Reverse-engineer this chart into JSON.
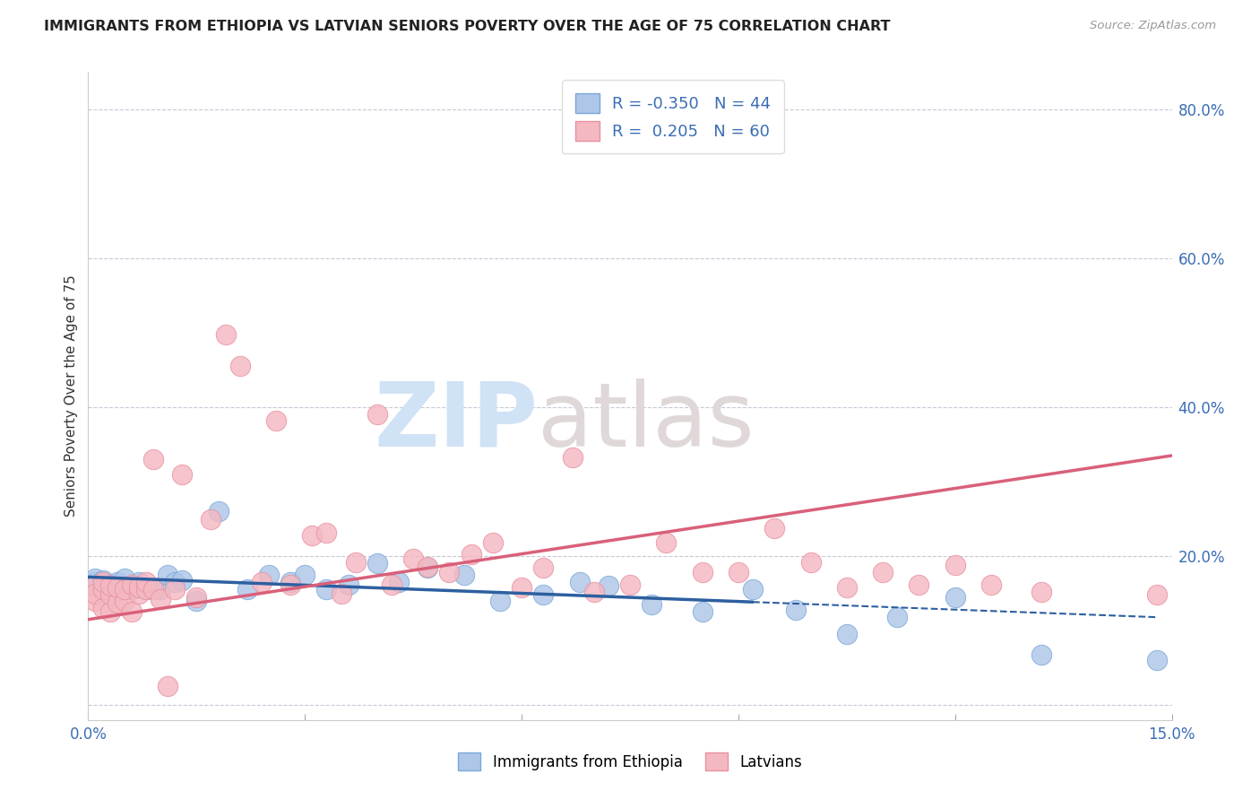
{
  "title": "IMMIGRANTS FROM ETHIOPIA VS LATVIAN SENIORS POVERTY OVER THE AGE OF 75 CORRELATION CHART",
  "source": "Source: ZipAtlas.com",
  "ylabel": "Seniors Poverty Over the Age of 75",
  "xlim": [
    0.0,
    0.15
  ],
  "ylim": [
    -0.02,
    0.85
  ],
  "xticks": [
    0.0,
    0.03,
    0.06,
    0.09,
    0.12,
    0.15
  ],
  "xticklabels": [
    "0.0%",
    "",
    "",
    "",
    "",
    "15.0%"
  ],
  "yticks_right": [
    0.0,
    0.2,
    0.4,
    0.6,
    0.8
  ],
  "ytick_labels_right": [
    "",
    "20.0%",
    "40.0%",
    "60.0%",
    "80.0%"
  ],
  "legend_blue_r": "-0.350",
  "legend_blue_n": "44",
  "legend_pink_r": "0.205",
  "legend_pink_n": "60",
  "blue_color": "#aec6e8",
  "pink_color": "#f4b8c1",
  "blue_line_color": "#2d5fa0",
  "pink_line_color": "#d9607a",
  "blue_edge_color": "#7aa8d8",
  "pink_edge_color": "#e8909f",
  "blue_scatter_x": [
    0.001,
    0.001,
    0.001,
    0.002,
    0.002,
    0.003,
    0.003,
    0.004,
    0.004,
    0.005,
    0.005,
    0.006,
    0.007,
    0.008,
    0.009,
    0.01,
    0.011,
    0.012,
    0.013,
    0.015,
    0.018,
    0.022,
    0.025,
    0.028,
    0.03,
    0.033,
    0.036,
    0.04,
    0.043,
    0.047,
    0.052,
    0.057,
    0.063,
    0.068,
    0.072,
    0.078,
    0.085,
    0.092,
    0.098,
    0.105,
    0.112,
    0.12,
    0.132,
    0.148
  ],
  "blue_scatter_y": [
    0.165,
    0.17,
    0.16,
    0.158,
    0.168,
    0.155,
    0.162,
    0.15,
    0.165,
    0.158,
    0.17,
    0.155,
    0.165,
    0.155,
    0.158,
    0.155,
    0.175,
    0.165,
    0.168,
    0.14,
    0.26,
    0.155,
    0.175,
    0.165,
    0.175,
    0.155,
    0.162,
    0.19,
    0.165,
    0.185,
    0.175,
    0.14,
    0.148,
    0.165,
    0.16,
    0.135,
    0.125,
    0.155,
    0.128,
    0.095,
    0.118,
    0.145,
    0.068,
    0.06
  ],
  "pink_scatter_x": [
    0.001,
    0.001,
    0.001,
    0.002,
    0.002,
    0.002,
    0.003,
    0.003,
    0.003,
    0.004,
    0.004,
    0.005,
    0.005,
    0.006,
    0.006,
    0.007,
    0.007,
    0.008,
    0.008,
    0.009,
    0.009,
    0.01,
    0.011,
    0.012,
    0.013,
    0.015,
    0.017,
    0.019,
    0.021,
    0.024,
    0.026,
    0.028,
    0.031,
    0.033,
    0.035,
    0.037,
    0.04,
    0.042,
    0.045,
    0.047,
    0.05,
    0.053,
    0.056,
    0.06,
    0.063,
    0.067,
    0.07,
    0.075,
    0.08,
    0.085,
    0.09,
    0.095,
    0.1,
    0.105,
    0.11,
    0.115,
    0.12,
    0.125,
    0.132,
    0.148
  ],
  "pink_scatter_y": [
    0.14,
    0.16,
    0.15,
    0.13,
    0.155,
    0.165,
    0.125,
    0.148,
    0.16,
    0.138,
    0.158,
    0.14,
    0.155,
    0.125,
    0.162,
    0.15,
    0.158,
    0.155,
    0.165,
    0.155,
    0.33,
    0.142,
    0.025,
    0.155,
    0.31,
    0.145,
    0.25,
    0.498,
    0.455,
    0.165,
    0.382,
    0.162,
    0.228,
    0.232,
    0.15,
    0.192,
    0.39,
    0.162,
    0.196,
    0.186,
    0.178,
    0.202,
    0.218,
    0.158,
    0.185,
    0.332,
    0.152,
    0.162,
    0.218,
    0.178,
    0.178,
    0.238,
    0.192,
    0.158,
    0.178,
    0.162,
    0.188,
    0.162,
    0.152,
    0.148
  ],
  "blue_trend_x0": 0.0,
  "blue_trend_y0": 0.172,
  "blue_trend_x1": 0.148,
  "blue_trend_y1": 0.118,
  "blue_trend_solid_end": 0.092,
  "pink_trend_x0": 0.0,
  "pink_trend_y0": 0.115,
  "pink_trend_x1": 0.15,
  "pink_trend_y1": 0.335
}
